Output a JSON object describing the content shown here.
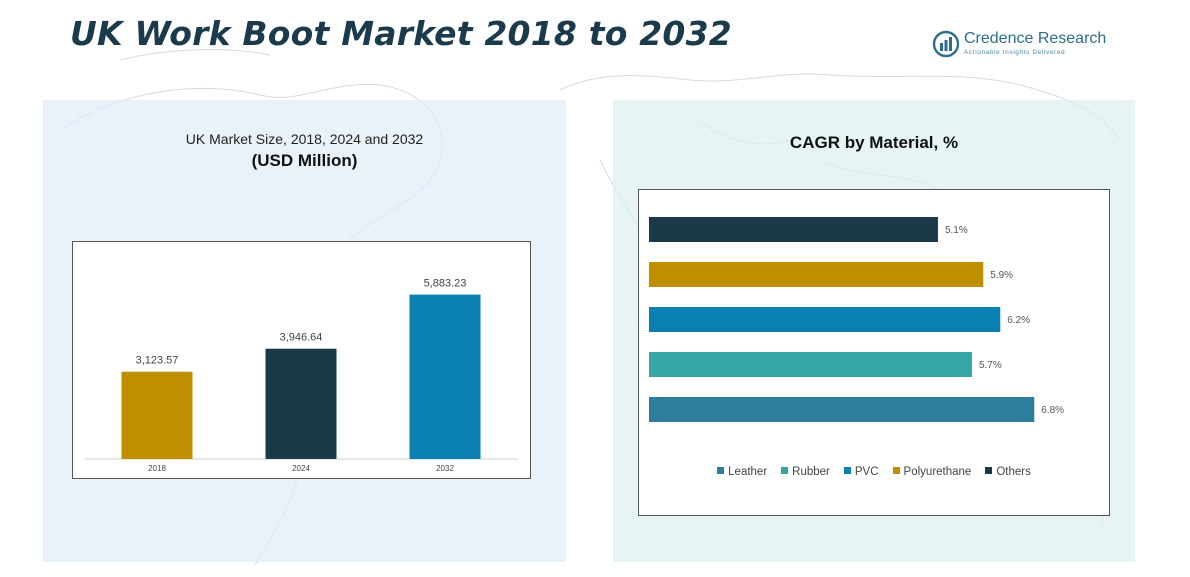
{
  "title": "UK Work Boot Market 2018 to 2032",
  "brand": {
    "name": "Credence Research",
    "tagline": "Actionable Insights Delivered"
  },
  "left_panel": {
    "subtitle": "UK Market Size, 2018, 2024 and 2032",
    "unit": "(USD Million)"
  },
  "right_panel": {
    "title": "CAGR by Material, %"
  },
  "colors": {
    "title": "#1b3a4b",
    "gold": "#bf8f00",
    "navy": "#1a3a4a",
    "blue": "#0a7fb2",
    "teal": "#35a5a5",
    "steel": "#2e7d9a"
  },
  "chart_data": [
    {
      "type": "bar",
      "title": "UK Market Size, 2018, 2024 and 2032",
      "ylabel": "(USD Million)",
      "categories": [
        "2018",
        "2024",
        "2032"
      ],
      "values": [
        3123.57,
        3946.64,
        5883.23
      ],
      "labels": [
        "3,123.57",
        "3,946.64",
        "5,883.23"
      ],
      "colors": [
        "#bf8f00",
        "#1a3a4a",
        "#0a7fb2"
      ],
      "ylim": [
        0,
        6800
      ]
    },
    {
      "type": "bar",
      "orientation": "horizontal",
      "title": "CAGR by Material, %",
      "categories": [
        "Others",
        "Polyurethane",
        "PVC",
        "Rubber",
        "Leather"
      ],
      "values": [
        5.1,
        5.9,
        6.2,
        5.7,
        6.8
      ],
      "labels": [
        "5.1%",
        "5.9%",
        "6.2%",
        "5.7%",
        "6.8%"
      ],
      "colors": [
        "#1a3a4a",
        "#bf8f00",
        "#0a7fb2",
        "#35a5a5",
        "#2e7d9a"
      ],
      "xlim": [
        0,
        7.06
      ],
      "legend": {
        "position": "bottom",
        "entries": [
          {
            "label": "Leather",
            "color": "#2e7d9a"
          },
          {
            "label": "Rubber",
            "color": "#35a5a5"
          },
          {
            "label": "PVC",
            "color": "#0a7fb2"
          },
          {
            "label": "Polyurethane",
            "color": "#bf8f00"
          },
          {
            "label": "Others",
            "color": "#1a3a4a"
          }
        ]
      }
    }
  ]
}
